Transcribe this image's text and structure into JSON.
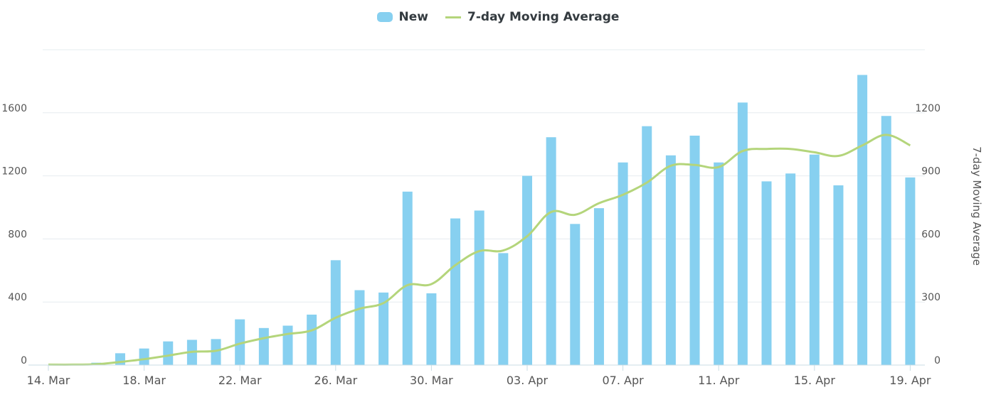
{
  "colors": {
    "bar": "#87d0f0",
    "line": "#b4d57b",
    "grid": "#e6ecef",
    "axis": "#c9dde4",
    "text": "#555555",
    "legend_text": "#333a3f"
  },
  "legend": {
    "bar_label": "New",
    "line_label": "7-day Moving Average"
  },
  "chart_data": {
    "type": "bar",
    "x": [
      "14. Mar",
      "15. Mar",
      "16. Mar",
      "17. Mar",
      "18. Mar",
      "19. Mar",
      "20. Mar",
      "21. Mar",
      "22. Mar",
      "23. Mar",
      "24. Mar",
      "25. Mar",
      "26. Mar",
      "27. Mar",
      "28. Mar",
      "29. Mar",
      "30. Mar",
      "31. Mar",
      "01. Apr",
      "02. Apr",
      "03. Apr",
      "04. Apr",
      "05. Apr",
      "06. Apr",
      "07. Apr",
      "08. Apr",
      "09. Apr",
      "10. Apr",
      "11. Apr",
      "12. Apr",
      "13. Apr",
      "14. Apr",
      "15. Apr",
      "16. Apr",
      "17. Apr",
      "18. Apr",
      "19. Apr"
    ],
    "x_tick_labels": [
      "14. Mar",
      "18. Mar",
      "22. Mar",
      "26. Mar",
      "30. Mar",
      "03. Apr",
      "07. Apr",
      "11. Apr",
      "15. Apr",
      "19. Apr"
    ],
    "series": [
      {
        "name": "New",
        "type": "bar",
        "axis": "left",
        "values": [
          2,
          3,
          15,
          75,
          105,
          150,
          160,
          165,
          290,
          235,
          250,
          320,
          665,
          475,
          460,
          1100,
          455,
          930,
          980,
          710,
          1200,
          1445,
          895,
          995,
          1285,
          1515,
          1330,
          1455,
          1285,
          1665,
          1165,
          1215,
          1335,
          1140,
          1840,
          1580,
          1190
        ]
      },
      {
        "name": "7-day Moving Average",
        "type": "line",
        "axis": "right",
        "values": [
          2,
          2,
          4,
          15,
          28,
          45,
          63,
          68,
          102,
          128,
          148,
          165,
          225,
          268,
          295,
          380,
          385,
          475,
          542,
          545,
          613,
          728,
          715,
          770,
          810,
          868,
          948,
          952,
          942,
          1018,
          1028,
          1028,
          1012,
          995,
          1045,
          1095,
          1045
        ]
      }
    ],
    "y_left": {
      "ticks": [
        0,
        400,
        800,
        1200,
        1600
      ],
      "ylim": [
        0,
        2000
      ]
    },
    "y_right": {
      "ticks": [
        0,
        300,
        600,
        900,
        1200
      ],
      "ylim": [
        0,
        1500
      ],
      "label": "7-day Moving Average"
    },
    "grid": true,
    "legend_position": "top-center"
  }
}
